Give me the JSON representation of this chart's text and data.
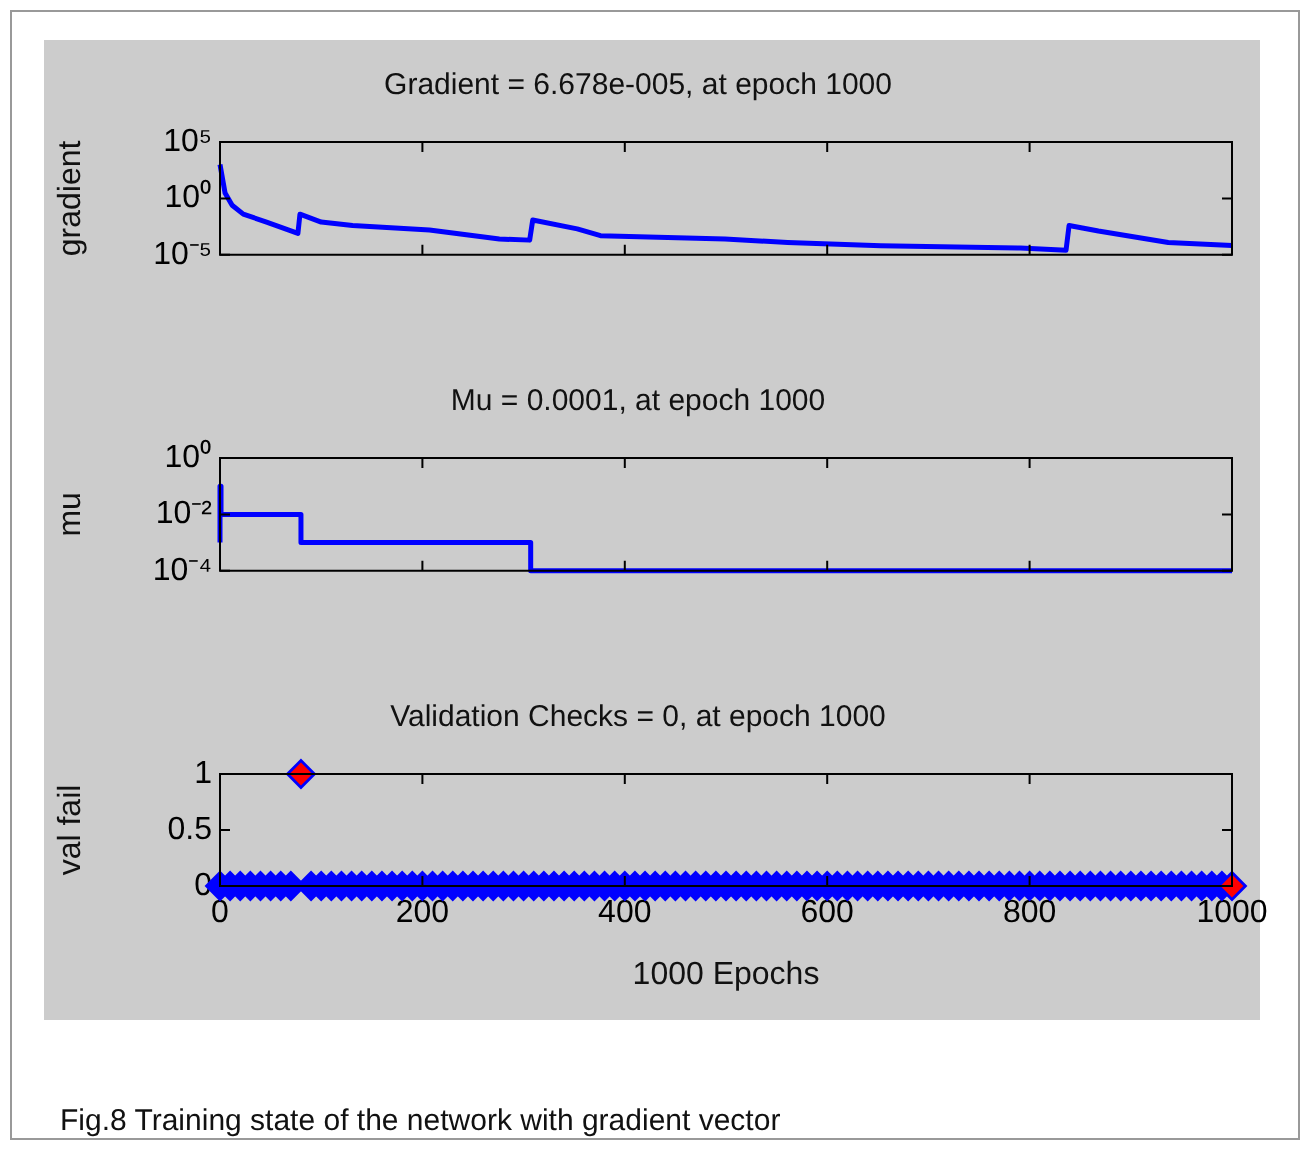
{
  "chart_data": [
    {
      "type": "line",
      "title": "Gradient = 6.678e-005, at epoch 1000",
      "ylabel": "gradient",
      "log": "y",
      "xlim": [
        0,
        1000
      ],
      "xticks": [
        0,
        200,
        400,
        600,
        800,
        1000
      ],
      "ylim": [
        1e-05,
        100000
      ],
      "yticks": [
        {
          "value": 1e-05,
          "label": "10⁻⁵"
        },
        {
          "value": 1,
          "label": "10⁰"
        },
        {
          "value": 100000,
          "label": "10⁵"
        }
      ],
      "tick_labels": "y",
      "grid": false,
      "legend": false,
      "marker": "none",
      "series": [
        {
          "color": "#0000ff",
          "x": [
            0,
            5,
            12,
            23,
            46,
            77,
            79,
            100,
            131,
            207,
            276,
            306,
            309,
            353,
            376,
            499,
            561,
            653,
            791,
            836,
            839,
            868,
            937,
            1000
          ],
          "values": [
            1000,
            3,
            0.25,
            0.04,
            0.008,
            0.0008,
            0.04,
            0.008,
            0.004,
            0.0016,
            0.00025,
            0.0002,
            0.012,
            0.002,
            0.0005,
            0.00025,
            0.000125,
            6.3e-05,
            4e-05,
            2.5e-05,
            0.004,
            0.0013,
            0.000125,
            6.678e-05
          ]
        }
      ]
    },
    {
      "type": "step",
      "title": "Mu = 0.0001, at epoch 1000",
      "ylabel": "mu",
      "log": "y",
      "xlim": [
        0,
        1000
      ],
      "xticks": [
        0,
        200,
        400,
        600,
        800,
        1000
      ],
      "ylim": [
        0.0001,
        1
      ],
      "yticks": [
        {
          "value": 0.0001,
          "label": "10⁻⁴"
        },
        {
          "value": 0.01,
          "label": "10⁻²"
        },
        {
          "value": 1,
          "label": "10⁰"
        }
      ],
      "tick_labels": "y",
      "grid": false,
      "legend": false,
      "marker": "none",
      "series": [
        {
          "color": "#0000ff",
          "x": [
            0,
            1,
            80,
            307,
            837,
            1000
          ],
          "values": [
            0.001,
            0.1,
            0.01,
            0.001,
            0.0001,
            0.0001
          ]
        }
      ]
    },
    {
      "type": "scatter",
      "title": "Validation Checks = 0, at epoch 1000",
      "ylabel": "val fail",
      "xlabel": "1000 Epochs",
      "xlim": [
        0,
        1000
      ],
      "xticks": [
        0,
        200,
        400,
        600,
        800,
        1000
      ],
      "ylim": [
        0,
        1
      ],
      "yticks": [
        0,
        0.5,
        1
      ],
      "grid": false,
      "legend": false,
      "marker": "diamond",
      "annotations": [
        "Fig.8 Training state of the network with gradient vector"
      ],
      "series": [
        {
          "color": "#0000ff",
          "x": [
            0,
            10,
            20,
            30,
            40,
            50,
            60,
            70,
            80,
            90,
            100,
            110,
            120,
            130,
            140,
            150,
            160,
            170,
            180,
            190,
            200,
            210,
            220,
            230,
            240,
            250,
            260,
            270,
            280,
            290,
            300,
            310,
            320,
            330,
            340,
            350,
            360,
            370,
            380,
            390,
            400,
            410,
            420,
            430,
            440,
            450,
            460,
            470,
            480,
            490,
            500,
            510,
            520,
            530,
            540,
            550,
            560,
            570,
            580,
            590,
            600,
            610,
            620,
            630,
            640,
            650,
            660,
            670,
            680,
            690,
            700,
            710,
            720,
            730,
            740,
            750,
            760,
            770,
            780,
            790,
            800,
            810,
            820,
            830,
            840,
            850,
            860,
            870,
            880,
            890,
            900,
            910,
            920,
            930,
            940,
            950,
            960,
            970,
            980,
            990,
            1000
          ],
          "values": [
            0,
            0,
            0,
            0,
            0,
            0,
            0,
            0,
            1,
            0,
            0,
            0,
            0,
            0,
            0,
            0,
            0,
            0,
            0,
            0,
            0,
            0,
            0,
            0,
            0,
            0,
            0,
            0,
            0,
            0,
            0,
            0,
            0,
            0,
            0,
            0,
            0,
            0,
            0,
            0,
            0,
            0,
            0,
            0,
            0,
            0,
            0,
            0,
            0,
            0,
            0,
            0,
            0,
            0,
            0,
            0,
            0,
            0,
            0,
            0,
            0,
            0,
            0,
            0,
            0,
            0,
            0,
            0,
            0,
            0,
            0,
            0,
            0,
            0,
            0,
            0,
            0,
            0,
            0,
            0,
            0,
            0,
            0,
            0,
            0,
            0,
            0,
            0,
            0,
            0,
            0,
            0,
            0,
            0,
            0,
            0,
            0,
            0,
            0,
            0,
            0
          ]
        },
        {
          "color": "#ff0000",
          "x": [
            80,
            1000
          ],
          "values": [
            1,
            0
          ]
        }
      ]
    }
  ]
}
